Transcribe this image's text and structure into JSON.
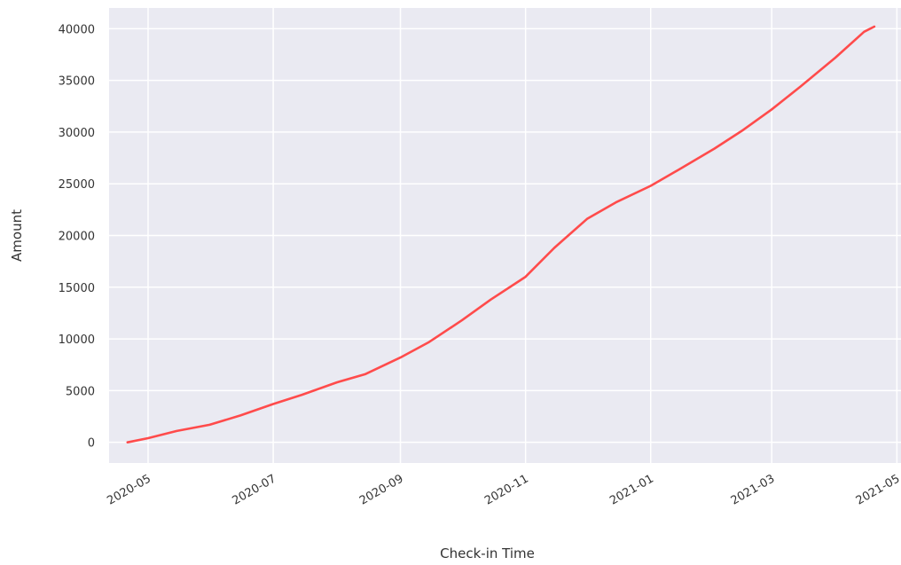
{
  "chart_data": {
    "type": "line",
    "title": "",
    "xlabel": "Check-in Time",
    "ylabel": "Amount",
    "x_axis_type": "date",
    "x_tick_labels": [
      "2020-05",
      "2020-07",
      "2020-09",
      "2020-11",
      "2021-01",
      "2021-03",
      "2021-05"
    ],
    "y_tick_labels": [
      "0",
      "5000",
      "10000",
      "15000",
      "20000",
      "25000",
      "30000",
      "35000",
      "40000"
    ],
    "y_ticks": [
      0,
      5000,
      10000,
      15000,
      20000,
      25000,
      30000,
      35000,
      40000
    ],
    "xlim": [
      "2020-04-12",
      "2021-05-03"
    ],
    "ylim": [
      -2000,
      42000
    ],
    "grid": true,
    "legend": "none",
    "background_color": "#eaeaf2",
    "grid_color": "#ffffff",
    "series": [
      {
        "color": "#ff4b4b",
        "x": [
          "2020-04-21",
          "2020-05-01",
          "2020-05-15",
          "2020-05-31",
          "2020-06-15",
          "2020-07-01",
          "2020-07-15",
          "2020-08-01",
          "2020-08-15",
          "2020-09-01",
          "2020-09-15",
          "2020-10-01",
          "2020-10-15",
          "2020-11-01",
          "2020-11-15",
          "2020-12-01",
          "2020-12-15",
          "2021-01-01",
          "2021-01-15",
          "2021-02-01",
          "2021-02-15",
          "2021-03-01",
          "2021-03-15",
          "2021-04-01",
          "2021-04-15",
          "2021-04-20"
        ],
        "values": [
          0,
          400,
          1100,
          1700,
          2600,
          3700,
          4600,
          5800,
          6600,
          8200,
          9700,
          11800,
          13800,
          16000,
          18800,
          21600,
          23200,
          24800,
          26400,
          28400,
          30200,
          32200,
          34400,
          37200,
          39700,
          40200
        ]
      }
    ]
  }
}
